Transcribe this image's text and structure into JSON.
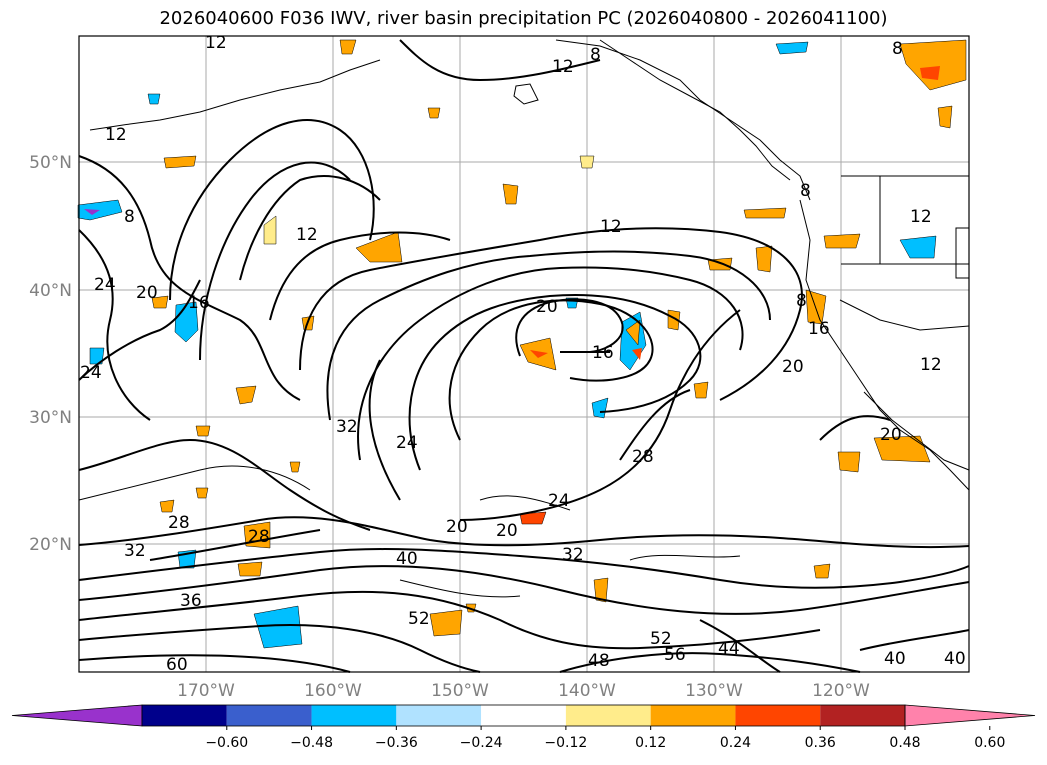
{
  "title": "2026040600 F036 IWV, river basin precipitation PC (2026040800 - 2026041100)",
  "map": {
    "lon_labels": [
      "170°W",
      "160°W",
      "150°W",
      "140°W",
      "130°W",
      "120°W"
    ],
    "lat_labels": [
      "50°N",
      "40°N",
      "30°N",
      "20°N"
    ],
    "contour_labels": [
      "12",
      "12",
      "12",
      "12",
      "8",
      "8",
      "8",
      "8",
      "8",
      "12",
      "12",
      "16",
      "20",
      "24",
      "24",
      "20",
      "16",
      "20",
      "28",
      "32",
      "24",
      "20",
      "24",
      "20",
      "28",
      "32",
      "40",
      "52",
      "52",
      "56",
      "60",
      "48",
      "44",
      "40",
      "40",
      "20",
      "12",
      "16",
      "28",
      "32",
      "36"
    ]
  },
  "colorbar": {
    "ticks": [
      "−0.60",
      "−0.48",
      "−0.36",
      "−0.24",
      "−0.12",
      "0.12",
      "0.24",
      "0.36",
      "0.48",
      "0.60"
    ],
    "colors": [
      "#9932cc",
      "#00008b",
      "#3a5fcd",
      "#00bfff",
      "#b0e2ff",
      "#ffffff",
      "#ffec8b",
      "#ffa500",
      "#ff4500",
      "#b22222",
      "#ff82ab"
    ]
  }
}
